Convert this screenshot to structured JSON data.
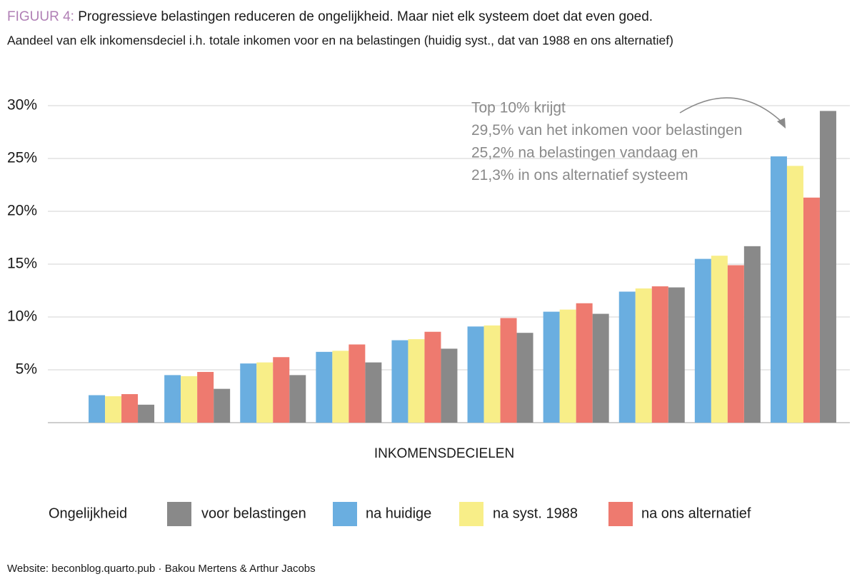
{
  "chart_data": {
    "type": "bar",
    "figure_label": "FIGUUR 4:",
    "title": "Progressieve belastingen reduceren de ongelijkheid. Maar niet elk systeem doet dat even goed.",
    "subtitle": "Aandeel van elk inkomensdeciel i.h. totale inkomen voor en na belastingen (huidig syst., dat van 1988 en ons alternatief)",
    "annotation": [
      "Top 10% krijgt",
      "29,5% van het inkomen voor belastingen",
      "25,2% na belastingen vandaag en",
      "21,3% in ons alternatief systeem"
    ],
    "x_label": "INKOMENSDECIELEN",
    "legend_title": "Ongelijkheid",
    "source": "Website: beconblog.quarto.pub · Bakou Mertens & Arthur Jacobs",
    "categories": [
      null,
      null,
      null,
      null,
      null,
      null,
      null,
      null,
      null,
      null
    ],
    "series": [
      {
        "name": "voor belastingen",
        "color": "#898989",
        "values": [
          1.7,
          3.2,
          4.5,
          5.7,
          7.0,
          8.5,
          10.3,
          12.8,
          16.7,
          29.5
        ]
      },
      {
        "name": "na huidige",
        "color": "#6aaee0",
        "values": [
          2.6,
          4.5,
          5.6,
          6.7,
          7.8,
          9.1,
          10.5,
          12.4,
          15.5,
          25.2
        ]
      },
      {
        "name": "na syst. 1988",
        "color": "#f8ee88",
        "values": [
          2.5,
          4.4,
          5.7,
          6.8,
          7.9,
          9.2,
          10.7,
          12.7,
          15.8,
          24.3
        ]
      },
      {
        "name": "na ons alternatief",
        "color": "#ee7a6f",
        "values": [
          2.7,
          4.8,
          6.2,
          7.4,
          8.6,
          9.9,
          11.3,
          12.9,
          14.9,
          21.3
        ]
      }
    ],
    "ylim": [
      0,
      30
    ],
    "yticks": [
      {
        "value": 5,
        "label": "5%"
      },
      {
        "value": 10,
        "label": "10%"
      },
      {
        "value": 15,
        "label": "15%"
      },
      {
        "value": 20,
        "label": "20%"
      },
      {
        "value": 25,
        "label": "25%"
      },
      {
        "value": 30,
        "label": "30%"
      }
    ],
    "grid": true
  }
}
